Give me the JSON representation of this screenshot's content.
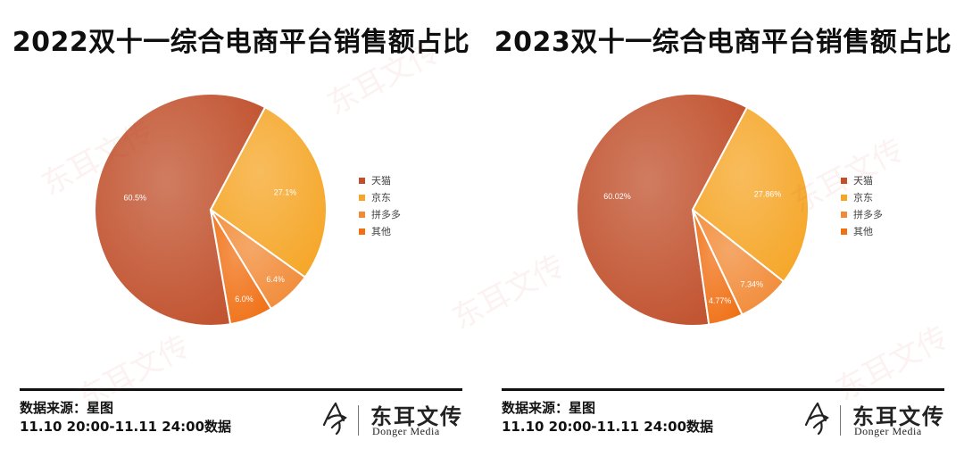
{
  "chart_data": [
    {
      "type": "pie",
      "title": "2022双十一综合电商平台销售额占比",
      "categories": [
        "天猫",
        "京东",
        "拼多多",
        "其他"
      ],
      "values": [
        60.5,
        27.1,
        6.4,
        6.0
      ],
      "labels": [
        "60.5%",
        "27.1%",
        "6.4%",
        "6.0%"
      ],
      "colors": [
        "#c0502c",
        "#f5a627",
        "#f18a36",
        "#f07014"
      ],
      "legend": "right"
    },
    {
      "type": "pie",
      "title": "2023双十一综合电商平台销售额占比",
      "categories": [
        "天猫",
        "京东",
        "拼多多",
        "其他"
      ],
      "values": [
        60.02,
        27.86,
        7.34,
        4.77
      ],
      "labels": [
        "60.02%",
        "27.86%",
        "7.34%",
        "4.77%"
      ],
      "colors": [
        "#c0502c",
        "#f5a627",
        "#f18a36",
        "#f07014"
      ],
      "legend": "right"
    }
  ],
  "footer": {
    "source": "数据来源：星图",
    "period": "11.10 20:00-11.11 24:00数据"
  },
  "logo": {
    "name_cn": "东耳文传",
    "name_en": "Donger Media"
  },
  "watermark": "东耳文传"
}
